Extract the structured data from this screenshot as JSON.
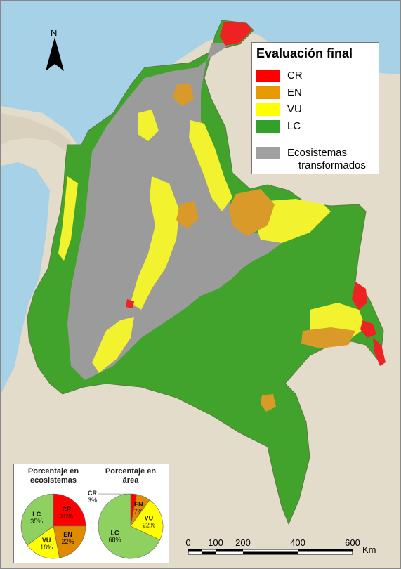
{
  "north_arrow": {
    "label": "N"
  },
  "legend": {
    "title": "Evaluación final",
    "items": [
      {
        "label": "CR",
        "color": "#ff0000"
      },
      {
        "label": "EN",
        "color": "#e69a00"
      },
      {
        "label": "VU",
        "color": "#ffff00"
      },
      {
        "label": "LC",
        "color": "#33a02c"
      }
    ],
    "transformed": {
      "label_line1": "Ecosistemas",
      "label_line2": "transformados",
      "color": "#a0a0a0"
    }
  },
  "map_colors": {
    "sea": "#a6d1e6",
    "land_neighbors": "#e3dcca",
    "lc": "#42a32c",
    "vu": "#f2f22e",
    "en": "#d99a2a",
    "cr": "#ee2222",
    "transformed": "#9b9b9b"
  },
  "pies": [
    {
      "title_line1": "Porcentaje en",
      "title_line2": "ecosistemas",
      "slices": [
        {
          "cat": "CR",
          "label": "25%",
          "value": 25,
          "color": "#ff0000"
        },
        {
          "cat": "EN",
          "label": "22%",
          "value": 22,
          "color": "#e08a00"
        },
        {
          "cat": "VU",
          "label": "18%",
          "value": 18,
          "color": "#ffff00"
        },
        {
          "cat": "LC",
          "label": "35%",
          "value": 35,
          "color": "#8fd160"
        }
      ]
    },
    {
      "title_line1": "Porcentaje en",
      "title_line2": "área",
      "slices": [
        {
          "cat": "CR",
          "label": "3%",
          "value": 3,
          "color": "#ff0000"
        },
        {
          "cat": "EN",
          "label": "7%",
          "value": 7,
          "color": "#e08a00"
        },
        {
          "cat": "VU",
          "label": "22%",
          "value": 22,
          "color": "#ffff00"
        },
        {
          "cat": "LC",
          "label": "68%",
          "value": 68,
          "color": "#8fd160"
        }
      ]
    }
  ],
  "scale_bar": {
    "ticks": [
      "0",
      "100",
      "200",
      "400",
      "600"
    ],
    "unit": "Km"
  }
}
